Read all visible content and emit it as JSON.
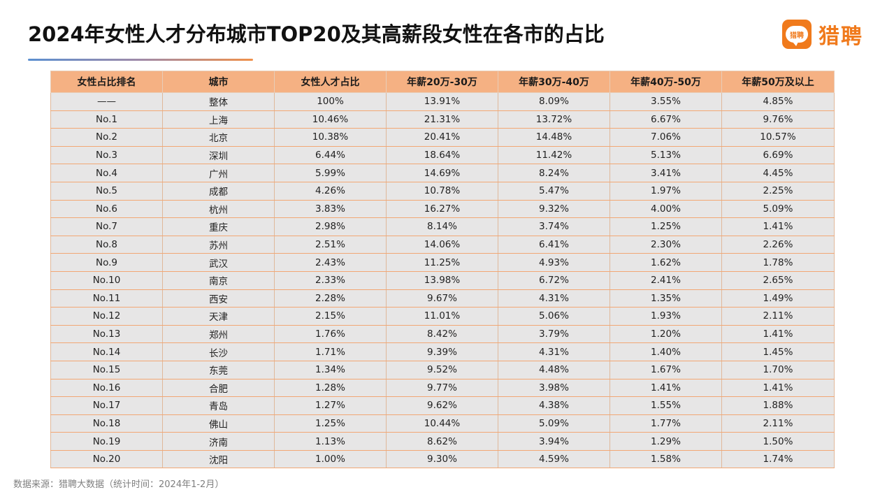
{
  "title": "2024年女性人才分布城市TOP20及其高薪段女性在各市的占比",
  "logo": {
    "badge_text": "猎聘",
    "brand_text": "猎聘"
  },
  "colors": {
    "header_bg": "#f5b183",
    "row_bg": "#e7e6e6",
    "border": "#f2a774",
    "brand": "#f07a1c"
  },
  "table": {
    "headers": [
      "女性占比排名",
      "城市",
      "女性人才占比",
      "年薪20万-30万",
      "年薪30万-40万",
      "年薪40万-50万",
      "年薪50万及以上"
    ],
    "rows": [
      [
        "——",
        "整体",
        "100%",
        "13.91%",
        "8.09%",
        "3.55%",
        "4.85%"
      ],
      [
        "No.1",
        "上海",
        "10.46%",
        "21.31%",
        "13.72%",
        "6.67%",
        "9.76%"
      ],
      [
        "No.2",
        "北京",
        "10.38%",
        "20.41%",
        "14.48%",
        "7.06%",
        "10.57%"
      ],
      [
        "No.3",
        "深圳",
        "6.44%",
        "18.64%",
        "11.42%",
        "5.13%",
        "6.69%"
      ],
      [
        "No.4",
        "广州",
        "5.99%",
        "14.69%",
        "8.24%",
        "3.41%",
        "4.45%"
      ],
      [
        "No.5",
        "成都",
        "4.26%",
        "10.78%",
        "5.47%",
        "1.97%",
        "2.25%"
      ],
      [
        "No.6",
        "杭州",
        "3.83%",
        "16.27%",
        "9.32%",
        "4.00%",
        "5.09%"
      ],
      [
        "No.7",
        "重庆",
        "2.98%",
        "8.14%",
        "3.74%",
        "1.25%",
        "1.41%"
      ],
      [
        "No.8",
        "苏州",
        "2.51%",
        "14.06%",
        "6.41%",
        "2.30%",
        "2.26%"
      ],
      [
        "No.9",
        "武汉",
        "2.43%",
        "11.25%",
        "4.93%",
        "1.62%",
        "1.78%"
      ],
      [
        "No.10",
        "南京",
        "2.33%",
        "13.98%",
        "6.72%",
        "2.41%",
        "2.65%"
      ],
      [
        "No.11",
        "西安",
        "2.28%",
        "9.67%",
        "4.31%",
        "1.35%",
        "1.49%"
      ],
      [
        "No.12",
        "天津",
        "2.15%",
        "11.01%",
        "5.06%",
        "1.93%",
        "2.11%"
      ],
      [
        "No.13",
        "郑州",
        "1.76%",
        "8.42%",
        "3.79%",
        "1.20%",
        "1.41%"
      ],
      [
        "No.14",
        "长沙",
        "1.71%",
        "9.39%",
        "4.31%",
        "1.40%",
        "1.45%"
      ],
      [
        "No.15",
        "东莞",
        "1.34%",
        "9.52%",
        "4.48%",
        "1.67%",
        "1.70%"
      ],
      [
        "No.16",
        "合肥",
        "1.28%",
        "9.77%",
        "3.98%",
        "1.41%",
        "1.41%"
      ],
      [
        "No.17",
        "青岛",
        "1.27%",
        "9.62%",
        "4.38%",
        "1.55%",
        "1.88%"
      ],
      [
        "No.18",
        "佛山",
        "1.25%",
        "10.44%",
        "5.09%",
        "1.77%",
        "2.11%"
      ],
      [
        "No.19",
        "济南",
        "1.13%",
        "8.62%",
        "3.94%",
        "1.29%",
        "1.50%"
      ],
      [
        "No.20",
        "沈阳",
        "1.00%",
        "9.30%",
        "4.59%",
        "1.58%",
        "1.74%"
      ]
    ]
  },
  "footer": "数据来源：猎聘大数据（统计时间：2024年1-2月）"
}
